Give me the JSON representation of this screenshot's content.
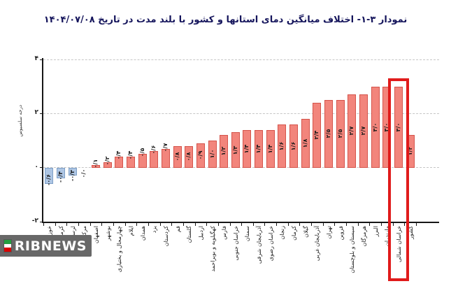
{
  "title": "نمودار ۳-۱- اختلاف میانگین دمای استانها و کشور با بلند مدت در تاریخ  ۱۴۰۴/۰۷/۰۸",
  "watermark": {
    "text": "RIBNEWS",
    "flag_icon": "iran-flag",
    "background": "#686868"
  },
  "chart_data": {
    "type": "bar",
    "title": "نمودار ۳-۱- اختلاف میانگین دمای استانها و کشور با بلند مدت در تاریخ ۱۴۰۴/۰۷/۰۸",
    "xlabel": "",
    "ylabel": "درجه سلسیوس",
    "ylim": [
      -2,
      4
    ],
    "grid": true,
    "legend": false,
    "yticks": [
      {
        "label": "۴",
        "value": 4,
        "gridline": true
      },
      {
        "label": "۲",
        "value": 2,
        "gridline": true
      },
      {
        "label": "۰",
        "value": 0,
        "gridline": true
      },
      {
        "label": "-۲",
        "value": -2,
        "gridline": false
      }
    ],
    "categories": [
      "خوزستان",
      "کرمانشاه",
      "لرستان",
      "مرکزی",
      "اصفهان",
      "بوشهر",
      "چهارمحال و بختیاری",
      "ایلام",
      "همدان",
      "یزد",
      "کردستان",
      "قم",
      "گلستان",
      "اردبیل",
      "کهگیلویه و بویراحمد",
      "فارس",
      "خراسان جنوبی",
      "سمنان",
      "آذربایجان شرقی",
      "خراسان رضوی",
      "زنجان",
      "کرمان",
      "گیلان",
      "آذربایجان غربی",
      "تهران",
      "قزوین",
      "سیستان و بلوچستان",
      "هرمزگان",
      "البرز",
      "مازندران",
      "خراسان شمالی",
      "کشور"
    ],
    "values": [
      -0.6,
      -0.4,
      -0.3,
      0.0,
      0.1,
      0.2,
      0.4,
      0.4,
      0.5,
      0.6,
      0.7,
      0.8,
      0.8,
      0.9,
      1.0,
      1.2,
      1.3,
      1.4,
      1.4,
      1.4,
      1.6,
      1.6,
      1.8,
      2.4,
      2.5,
      2.5,
      2.7,
      2.7,
      3.0,
      3.0,
      3.0,
      1.2
    ],
    "value_labels": [
      "-۰/۶",
      "-۰/۴",
      "-۰/۳",
      "۰/۰",
      "۰/۱",
      "۰/۲",
      "۰/۴",
      "۰/۴",
      "۰/۵",
      "۰/۶",
      "۰/۷",
      "۰/۸",
      "۰/۸",
      "۰/۹",
      "۱/۰",
      "۱/۲",
      "۱/۳",
      "۱/۴",
      "۱/۴",
      "۱/۴",
      "۱/۶",
      "۱/۶",
      "۱/۸",
      "۲/۴",
      "۲/۵",
      "۲/۵",
      "۲/۷",
      "۲/۷",
      "۳/۰",
      "۳/۰",
      "۳/۰",
      "۱/۲"
    ],
    "highlight_index": 30,
    "highlight_color": "#e01b1b",
    "colors": {
      "positive_fill": "#f2857c",
      "positive_border": "#d4534a",
      "negative_fill": "#aec6e4",
      "negative_border": "#7e9fc6",
      "grid": "#c6c6c6",
      "axis": "#161616",
      "title": "#15155c"
    }
  }
}
